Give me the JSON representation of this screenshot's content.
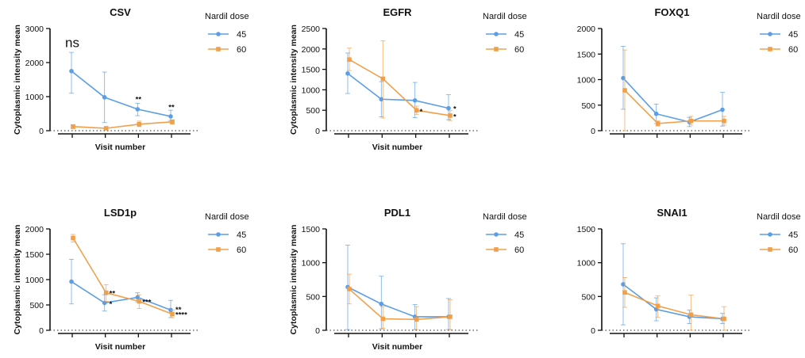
{
  "colors": {
    "s45": "#5b9ee6",
    "s60": "#f0a04b",
    "axis": "#111111",
    "zero": "#222222"
  },
  "chart_data": [
    {
      "type": "line",
      "title": "CSV",
      "xlabel": "Visit number",
      "ylabel": "Cytoplasmic intensity mean",
      "ylim": [
        0,
        3000
      ],
      "yticks": [
        0,
        1000,
        2000,
        3000
      ],
      "x": [
        1,
        2,
        3,
        4
      ],
      "legend_title": "Nardil dose",
      "annotations": [
        {
          "text": "ns",
          "x": 1,
          "y": 2450,
          "big": true
        },
        {
          "text": "**",
          "x": 3,
          "y": 850
        },
        {
          "text": "**",
          "x": 4,
          "y": 620
        }
      ],
      "series": [
        {
          "name": "45",
          "values": [
            1750,
            980,
            630,
            420
          ],
          "err_lo": [
            1100,
            240,
            440,
            300
          ],
          "err_hi": [
            2300,
            1720,
            800,
            600
          ]
        },
        {
          "name": "60",
          "values": [
            120,
            70,
            190,
            260
          ],
          "err_lo": [
            60,
            30,
            120,
            190
          ],
          "err_hi": [
            180,
            120,
            280,
            320
          ]
        }
      ]
    },
    {
      "type": "line",
      "title": "EGFR",
      "xlabel": "Visit number",
      "ylabel": "Cytoplasmic intensity mean",
      "ylim": [
        0,
        2500
      ],
      "yticks": [
        0,
        500,
        1000,
        1500,
        2000,
        2500
      ],
      "x": [
        1,
        2,
        3,
        4
      ],
      "legend_title": "Nardil dose",
      "annotations": [
        {
          "text": "*",
          "x": 3,
          "y": 480,
          "side": true
        },
        {
          "text": "*",
          "x": 4,
          "y": 550,
          "side": true
        },
        {
          "text": "*",
          "x": 4,
          "y": 360,
          "side": true
        }
      ],
      "series": [
        {
          "name": "45",
          "values": [
            1400,
            770,
            740,
            550
          ],
          "err_lo": [
            910,
            340,
            320,
            270
          ],
          "err_hi": [
            1900,
            1200,
            1180,
            880
          ]
        },
        {
          "name": "60",
          "values": [
            1740,
            1270,
            500,
            370
          ],
          "err_lo": [
            1470,
            310,
            400,
            250
          ],
          "err_hi": [
            2020,
            2200,
            600,
            490
          ]
        }
      ]
    },
    {
      "type": "line",
      "title": "FOXQ1",
      "xlabel": "",
      "ylabel": "",
      "ylim": [
        0,
        2000
      ],
      "yticks": [
        0,
        500,
        1000,
        1500,
        2000
      ],
      "x": [
        1,
        2,
        3,
        4
      ],
      "legend_title": "Nardil dose",
      "annotations": [],
      "series": [
        {
          "name": "45",
          "values": [
            1030,
            330,
            170,
            410
          ],
          "err_lo": [
            420,
            140,
            80,
            90
          ],
          "err_hi": [
            1650,
            520,
            260,
            750
          ]
        },
        {
          "name": "60",
          "values": [
            790,
            140,
            190,
            190
          ],
          "err_lo": [
            0,
            90,
            110,
            110
          ],
          "err_hi": [
            1580,
            190,
            280,
            280
          ]
        }
      ]
    },
    {
      "type": "line",
      "title": "LSD1p",
      "xlabel": "Visit number",
      "ylabel": "Cytoplasmic intensity mean",
      "ylim": [
        0,
        2000
      ],
      "yticks": [
        0,
        500,
        1000,
        1500,
        2000
      ],
      "x": [
        1,
        2,
        3,
        4
      ],
      "legend_title": "Nardil dose",
      "annotations": [
        {
          "text": "**",
          "x": 2,
          "y": 740,
          "side": true
        },
        {
          "text": "*",
          "x": 2,
          "y": 530,
          "side": true
        },
        {
          "text": "***",
          "x": 3,
          "y": 570,
          "side": true
        },
        {
          "text": "**",
          "x": 4,
          "y": 420,
          "side": true
        },
        {
          "text": "****",
          "x": 4,
          "y": 320,
          "side": true
        }
      ],
      "series": [
        {
          "name": "45",
          "values": [
            960,
            540,
            650,
            400
          ],
          "err_lo": [
            520,
            380,
            560,
            250
          ],
          "err_hi": [
            1400,
            700,
            740,
            590
          ]
        },
        {
          "name": "60",
          "values": [
            1820,
            740,
            570,
            320
          ],
          "err_lo": [
            1740,
            570,
            430,
            250
          ],
          "err_hi": [
            1890,
            900,
            700,
            400
          ]
        }
      ]
    },
    {
      "type": "line",
      "title": "PDL1",
      "xlabel": "Visit number",
      "ylabel": "Cytoplasmic intensity mean",
      "ylim": [
        0,
        1500
      ],
      "yticks": [
        0,
        500,
        1000,
        1500
      ],
      "x": [
        1,
        2,
        3,
        4
      ],
      "legend_title": "Nardil dose",
      "annotations": [],
      "series": [
        {
          "name": "45",
          "values": [
            640,
            390,
            200,
            200
          ],
          "err_lo": [
            10,
            20,
            10,
            10
          ],
          "err_hi": [
            1260,
            800,
            380,
            470
          ]
        },
        {
          "name": "60",
          "values": [
            610,
            170,
            160,
            200
          ],
          "err_lo": [
            390,
            30,
            10,
            10
          ],
          "err_hi": [
            830,
            350,
            350,
            450
          ]
        }
      ]
    },
    {
      "type": "line",
      "title": "SNAI1",
      "xlabel": "",
      "ylabel": "",
      "ylim": [
        0,
        1500
      ],
      "yticks": [
        0,
        500,
        1000,
        1500
      ],
      "x": [
        1,
        2,
        3,
        4
      ],
      "legend_title": "Nardil dose",
      "annotations": [],
      "series": [
        {
          "name": "45",
          "values": [
            680,
            310,
            200,
            170
          ],
          "err_lo": [
            80,
            140,
            100,
            100
          ],
          "err_hi": [
            1280,
            480,
            300,
            250
          ]
        },
        {
          "name": "60",
          "values": [
            560,
            360,
            230,
            170
          ],
          "err_lo": [
            340,
            190,
            0,
            0
          ],
          "err_hi": [
            780,
            510,
            520,
            350
          ]
        }
      ]
    }
  ]
}
